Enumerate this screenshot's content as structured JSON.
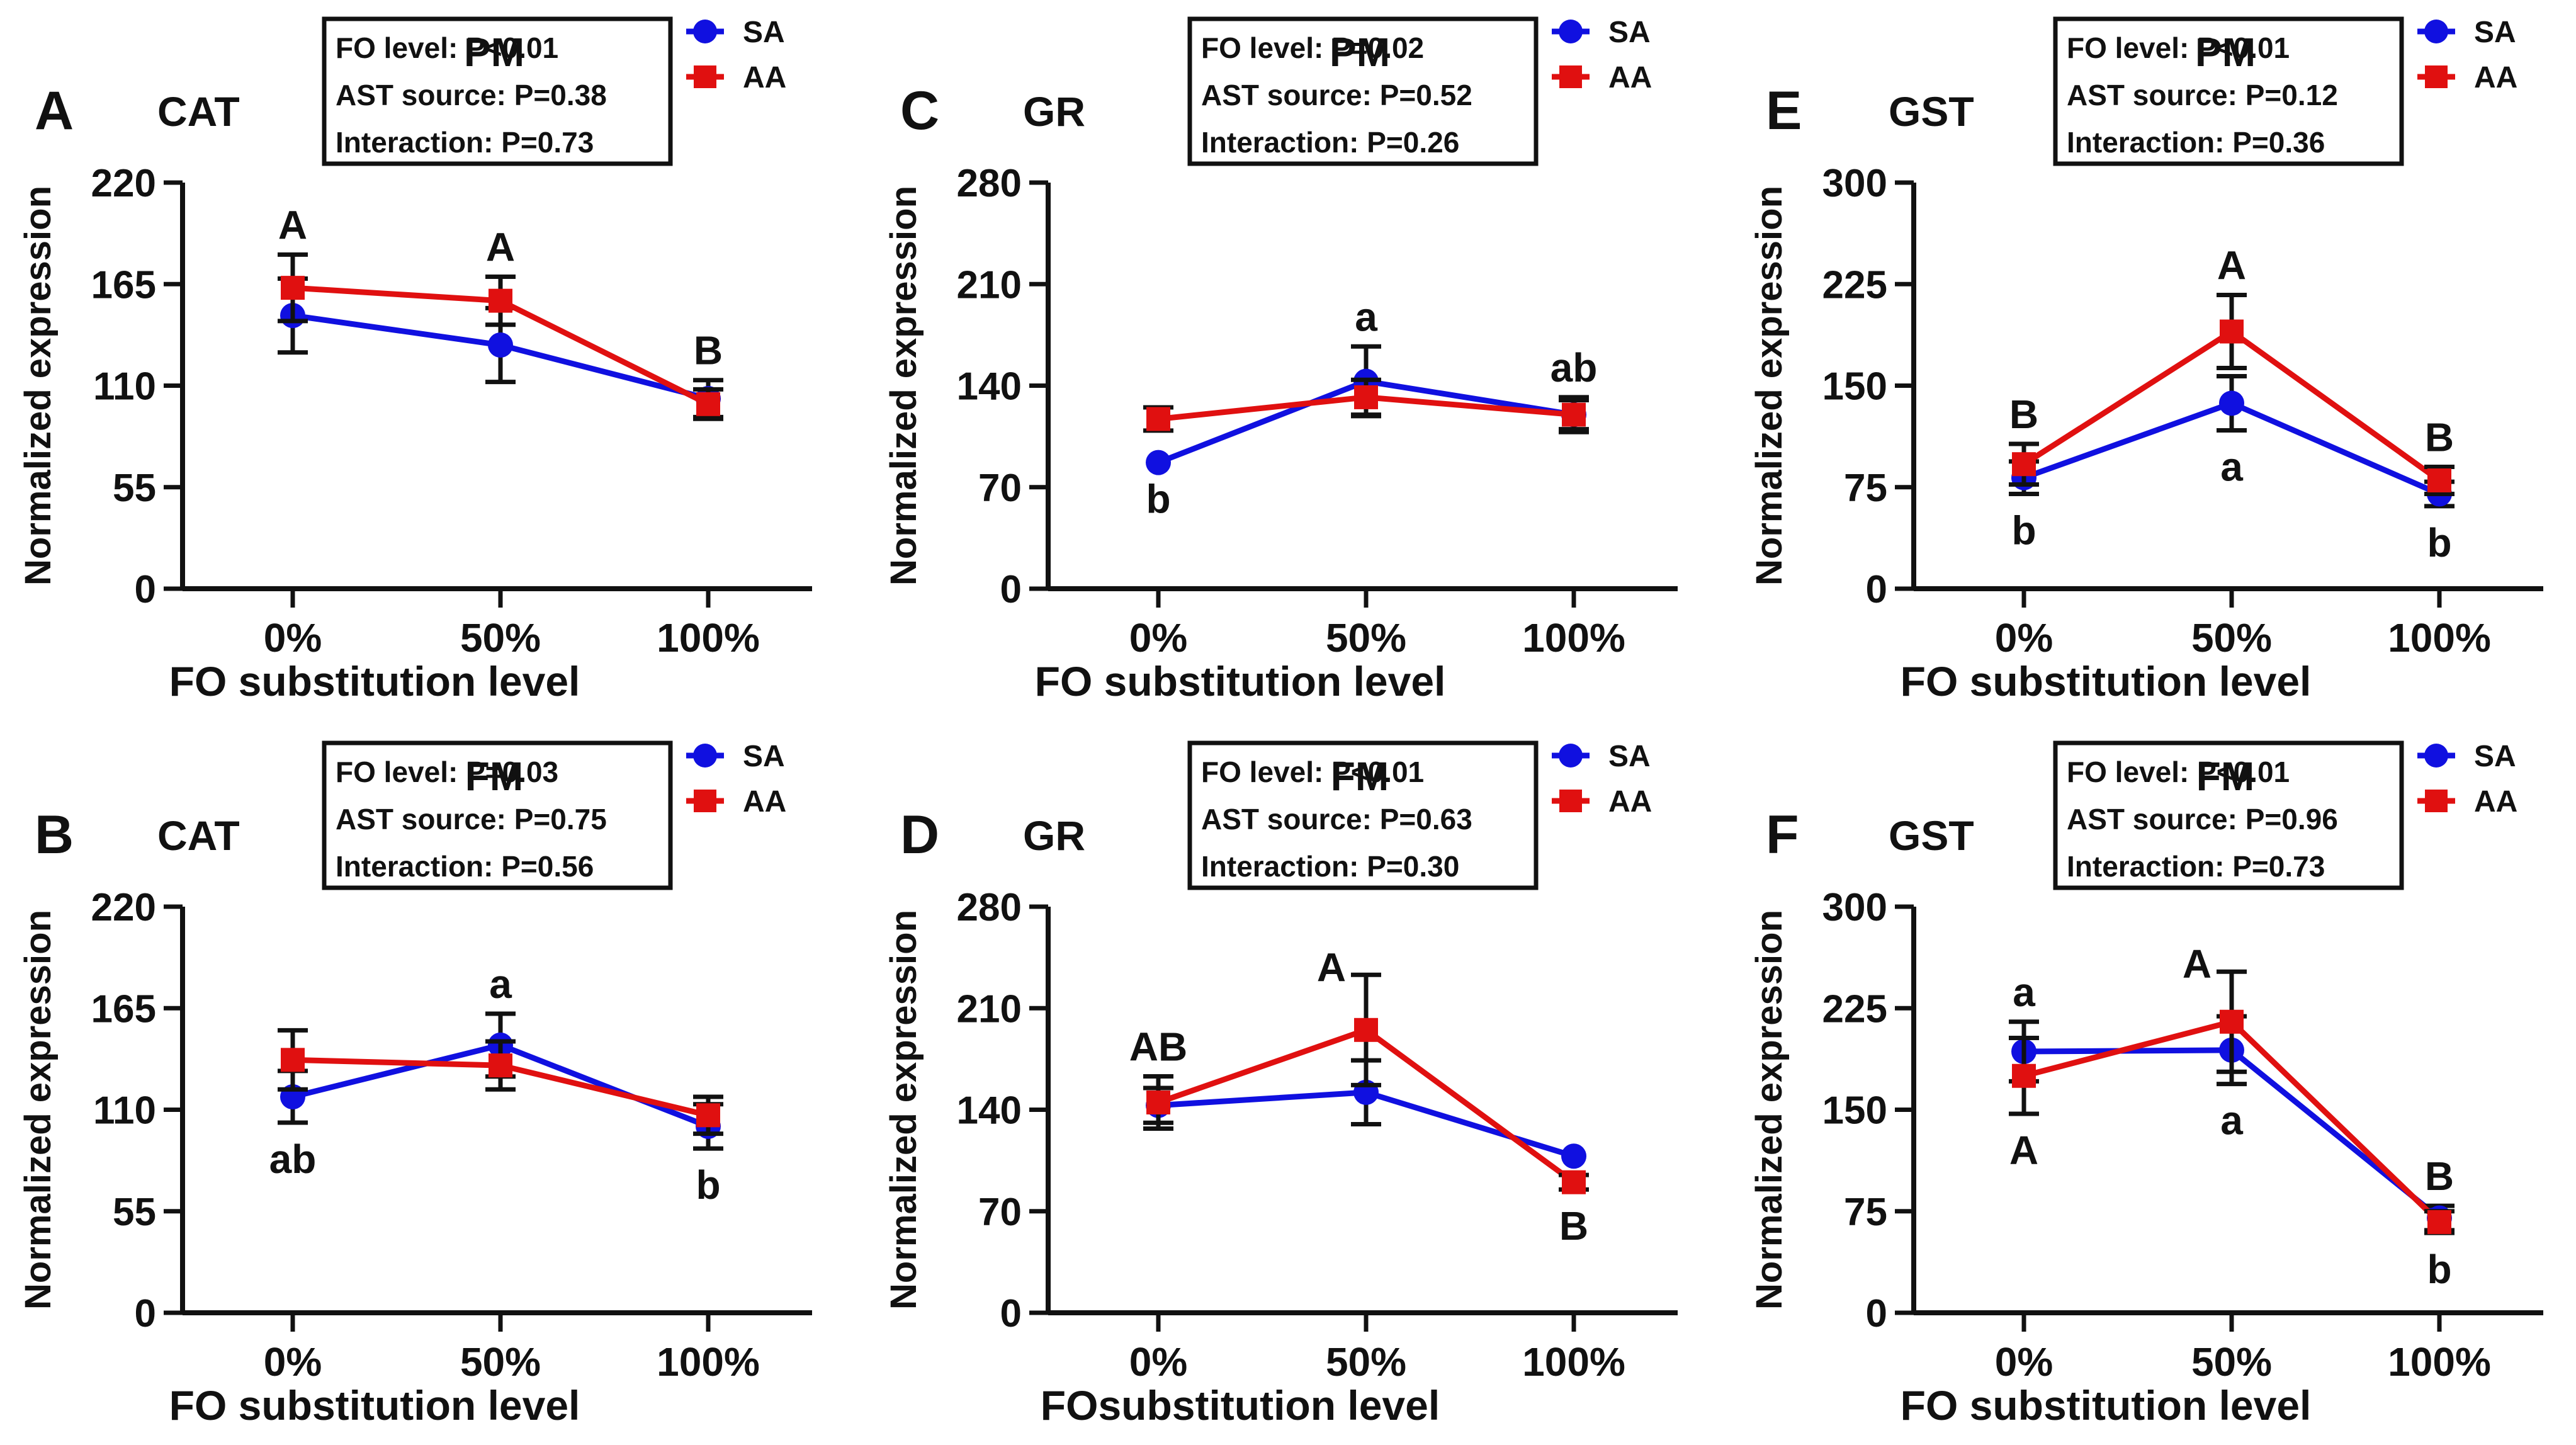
{
  "colors": {
    "SA": "#1010e0",
    "AA": "#e01010",
    "ink": "#111111"
  },
  "legend": {
    "SA": "SA",
    "AA": "AA"
  },
  "chart_data": [
    {
      "panel": "A",
      "type": "line",
      "title": "PM",
      "gene": "CAT",
      "ylabel": "Normalized expression",
      "xlabel": "FO substitution level",
      "categories": [
        "0%",
        "50%",
        "100%"
      ],
      "ylim": [
        0,
        220
      ],
      "yticks": [
        0,
        55,
        110,
        165,
        220
      ],
      "stats": [
        "FO level: P<0.01",
        "AST source: P=0.38",
        "Interaction: P=0.73"
      ],
      "series": [
        {
          "name": "SA",
          "values": [
            148,
            132,
            103
          ],
          "errors": [
            20,
            20,
            10
          ]
        },
        {
          "name": "AA",
          "values": [
            163,
            156,
            100
          ],
          "errors": [
            18,
            13,
            8
          ]
        }
      ],
      "letters": [
        {
          "text": "A",
          "index": 0,
          "pos": "above"
        },
        {
          "text": "A",
          "index": 1,
          "pos": "above"
        },
        {
          "text": "B",
          "index": 2,
          "pos": "above"
        }
      ]
    },
    {
      "panel": "B",
      "type": "line",
      "title": "FM",
      "gene": "CAT",
      "ylabel": "Normalized expression",
      "xlabel": "FO substitution level",
      "categories": [
        "0%",
        "50%",
        "100%"
      ],
      "ylim": [
        0,
        220
      ],
      "yticks": [
        0,
        55,
        110,
        165,
        220
      ],
      "stats": [
        "FO level: P=0.03",
        "AST source: P=0.75",
        "Interaction: P=0.56"
      ],
      "series": [
        {
          "name": "SA",
          "values": [
            117,
            145,
            101
          ],
          "errors": [
            14,
            17,
            12
          ]
        },
        {
          "name": "AA",
          "values": [
            137,
            134,
            107
          ],
          "errors": [
            16,
            13,
            10
          ]
        }
      ],
      "letters": [
        {
          "text": "a",
          "index": 1,
          "pos": "above"
        },
        {
          "text": "ab",
          "index": 0,
          "pos": "below"
        },
        {
          "text": "b",
          "index": 2,
          "pos": "below"
        }
      ]
    },
    {
      "panel": "C",
      "type": "line",
      "title": "PM",
      "gene": "GR",
      "ylabel": "Normalized expression",
      "xlabel": "FO substitution level",
      "categories": [
        "0%",
        "50%",
        "100%"
      ],
      "ylim": [
        0,
        280
      ],
      "yticks": [
        0,
        70,
        140,
        210,
        280
      ],
      "stats": [
        "FO level: P=0.02",
        "AST source: P=0.52",
        "Interaction: P=0.26"
      ],
      "series": [
        {
          "name": "SA",
          "values": [
            87,
            143,
            120
          ],
          "errors": [
            0,
            24,
            12
          ]
        },
        {
          "name": "AA",
          "values": [
            117,
            132,
            120
          ],
          "errors": [
            8,
            12,
            10
          ]
        }
      ],
      "letters": [
        {
          "text": "a",
          "index": 1,
          "pos": "above"
        },
        {
          "text": "ab",
          "index": 2,
          "pos": "above"
        },
        {
          "text": "b",
          "index": 0,
          "pos": "below"
        }
      ]
    },
    {
      "panel": "D",
      "type": "line",
      "title": "FM",
      "gene": "GR",
      "ylabel": "Normalized expression",
      "xlabel": "FOsubstitution level",
      "categories": [
        "0%",
        "50%",
        "100%"
      ],
      "ylim": [
        0,
        280
      ],
      "yticks": [
        0,
        70,
        140,
        210,
        280
      ],
      "stats": [
        "FO level: P<0.01",
        "AST source: P=0.63",
        "Interaction: P=0.30"
      ],
      "series": [
        {
          "name": "SA",
          "values": [
            143,
            152,
            108
          ],
          "errors": [
            12,
            22,
            0
          ]
        },
        {
          "name": "AA",
          "values": [
            145,
            195,
            90
          ],
          "errors": [
            18,
            38,
            5
          ]
        }
      ],
      "letters": [
        {
          "text": "AB",
          "index": 0,
          "pos": "above"
        },
        {
          "text": "A",
          "index": 1,
          "pos": "aboveLeft"
        },
        {
          "text": "B",
          "index": 2,
          "pos": "below"
        }
      ]
    },
    {
      "panel": "E",
      "type": "line",
      "title": "PM",
      "gene": "GST",
      "ylabel": "Normalized expression",
      "xlabel": "FO substitution level",
      "categories": [
        "0%",
        "50%",
        "100%"
      ],
      "ylim": [
        0,
        300
      ],
      "yticks": [
        0,
        75,
        150,
        225,
        300
      ],
      "stats": [
        "FO level: P<0.01",
        "AST source: P=0.12",
        "Interaction: P=0.36"
      ],
      "series": [
        {
          "name": "SA",
          "values": [
            82,
            137,
            70
          ],
          "errors": [
            12,
            20,
            9
          ]
        },
        {
          "name": "AA",
          "values": [
            92,
            190,
            80
          ],
          "errors": [
            15,
            27,
            10
          ]
        }
      ],
      "letters": [
        {
          "text": "B",
          "index": 0,
          "pos": "above"
        },
        {
          "text": "A",
          "index": 1,
          "pos": "above"
        },
        {
          "text": "B",
          "index": 2,
          "pos": "above"
        },
        {
          "text": "b",
          "index": 0,
          "pos": "below"
        },
        {
          "text": "a",
          "index": 1,
          "pos": "below"
        },
        {
          "text": "b",
          "index": 2,
          "pos": "below"
        }
      ]
    },
    {
      "panel": "F",
      "type": "line",
      "title": "FM",
      "gene": "GST",
      "ylabel": "Normalized expression",
      "xlabel": "FO substitution level",
      "categories": [
        "0%",
        "50%",
        "100%"
      ],
      "ylim": [
        0,
        300
      ],
      "yticks": [
        0,
        75,
        150,
        225,
        300
      ],
      "stats": [
        "FO level: P<0.01",
        "AST source: P=0.96",
        "Interaction: P=0.73"
      ],
      "series": [
        {
          "name": "SA",
          "values": [
            193,
            194,
            70
          ],
          "errors": [
            22,
            25,
            9
          ]
        },
        {
          "name": "AA",
          "values": [
            175,
            215,
            67
          ],
          "errors": [
            28,
            37,
            8
          ]
        }
      ],
      "letters": [
        {
          "text": "a",
          "index": 0,
          "pos": "above"
        },
        {
          "text": "A",
          "index": 1,
          "pos": "aboveLeft"
        },
        {
          "text": "B",
          "index": 2,
          "pos": "above"
        },
        {
          "text": "A",
          "index": 0,
          "pos": "below"
        },
        {
          "text": "a",
          "index": 1,
          "pos": "below"
        },
        {
          "text": "b",
          "index": 2,
          "pos": "below"
        }
      ]
    }
  ]
}
